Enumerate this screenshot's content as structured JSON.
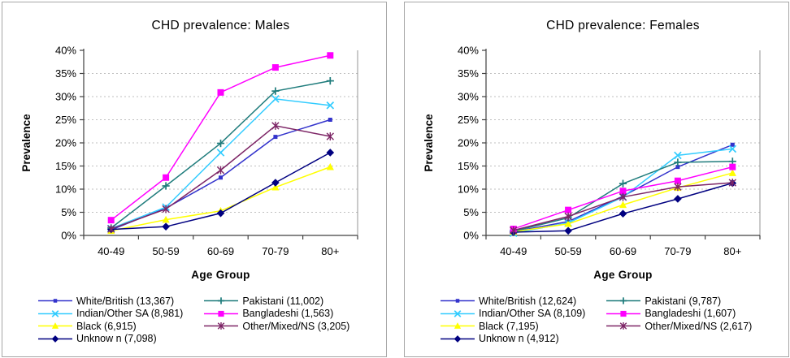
{
  "chart_data": [
    {
      "type": "line",
      "title": "CHD prevalence: Males",
      "xlabel": "Age Group",
      "ylabel": "Prevalence",
      "categories": [
        "40-49",
        "50-59",
        "60-69",
        "70-79",
        "80+"
      ],
      "ylim": [
        0,
        40
      ],
      "y_tick_step": 5,
      "y_tick_labels": [
        "0%",
        "5%",
        "10%",
        "15%",
        "20%",
        "25%",
        "30%",
        "35%",
        "40%"
      ],
      "grid": "horizontal-dashed",
      "legend_position": "bottom",
      "series": [
        {
          "name": "White/British (13,367)",
          "color": "#3333CC",
          "marker": "square-small",
          "values": [
            1.2,
            5.9,
            12.5,
            21.3,
            25.0
          ]
        },
        {
          "name": "Indian/Other SA (8,981)",
          "color": "#33CCFF",
          "marker": "x",
          "values": [
            1.5,
            6.1,
            17.9,
            29.5,
            28.1
          ]
        },
        {
          "name": "Black (6,915)",
          "color": "#FFFF00",
          "marker": "triangle",
          "values": [
            1.0,
            3.4,
            5.3,
            10.4,
            14.8
          ]
        },
        {
          "name": "Unknow n (7,098)",
          "color": "#000080",
          "marker": "diamond",
          "values": [
            1.3,
            1.9,
            4.8,
            11.4,
            17.9
          ]
        },
        {
          "name": "Pakistani (11,002)",
          "color": "#1F7C7C",
          "marker": "plus",
          "values": [
            1.6,
            10.7,
            19.9,
            31.2,
            33.4
          ]
        },
        {
          "name": "Bangladeshi (1,563)",
          "color": "#FF00FF",
          "marker": "square",
          "values": [
            3.3,
            12.5,
            30.9,
            36.3,
            38.9
          ]
        },
        {
          "name": "Other/Mixed/NS (3,205)",
          "color": "#7D2566",
          "marker": "asterisk",
          "values": [
            1.4,
            5.7,
            14.1,
            23.7,
            21.4
          ]
        }
      ]
    },
    {
      "type": "line",
      "title": "CHD prevalence: Females",
      "xlabel": "Age Group",
      "ylabel": "Prevalence",
      "categories": [
        "40-49",
        "50-59",
        "60-69",
        "70-79",
        "80+"
      ],
      "ylim": [
        0,
        40
      ],
      "y_tick_step": 5,
      "y_tick_labels": [
        "0%",
        "5%",
        "10%",
        "15%",
        "20%",
        "25%",
        "30%",
        "35%",
        "40%"
      ],
      "grid": "horizontal-dashed",
      "legend_position": "bottom",
      "series": [
        {
          "name": "White/British (12,624)",
          "color": "#3333CC",
          "marker": "square-small",
          "values": [
            0.8,
            3.0,
            8.5,
            14.8,
            19.6
          ]
        },
        {
          "name": "Indian/Other SA (8,109)",
          "color": "#33CCFF",
          "marker": "x",
          "values": [
            0.5,
            2.7,
            8.3,
            17.3,
            18.7
          ]
        },
        {
          "name": "Black (7,195)",
          "color": "#FFFF00",
          "marker": "triangle",
          "values": [
            0.8,
            2.5,
            6.6,
            10.3,
            13.5
          ]
        },
        {
          "name": "Unknow n (4,912)",
          "color": "#000080",
          "marker": "diamond",
          "values": [
            0.7,
            1.0,
            4.7,
            7.9,
            11.3
          ]
        },
        {
          "name": "Pakistani (9,787)",
          "color": "#1F7C7C",
          "marker": "plus",
          "values": [
            0.9,
            3.8,
            11.2,
            15.8,
            16.0
          ]
        },
        {
          "name": "Bangladeshi (1,607)",
          "color": "#FF00FF",
          "marker": "square",
          "values": [
            1.4,
            5.5,
            9.6,
            11.8,
            14.8
          ]
        },
        {
          "name": "Other/Mixed/NS (2,617)",
          "color": "#7D2566",
          "marker": "asterisk",
          "values": [
            1.1,
            4.1,
            8.3,
            10.5,
            11.4
          ]
        }
      ]
    }
  ]
}
